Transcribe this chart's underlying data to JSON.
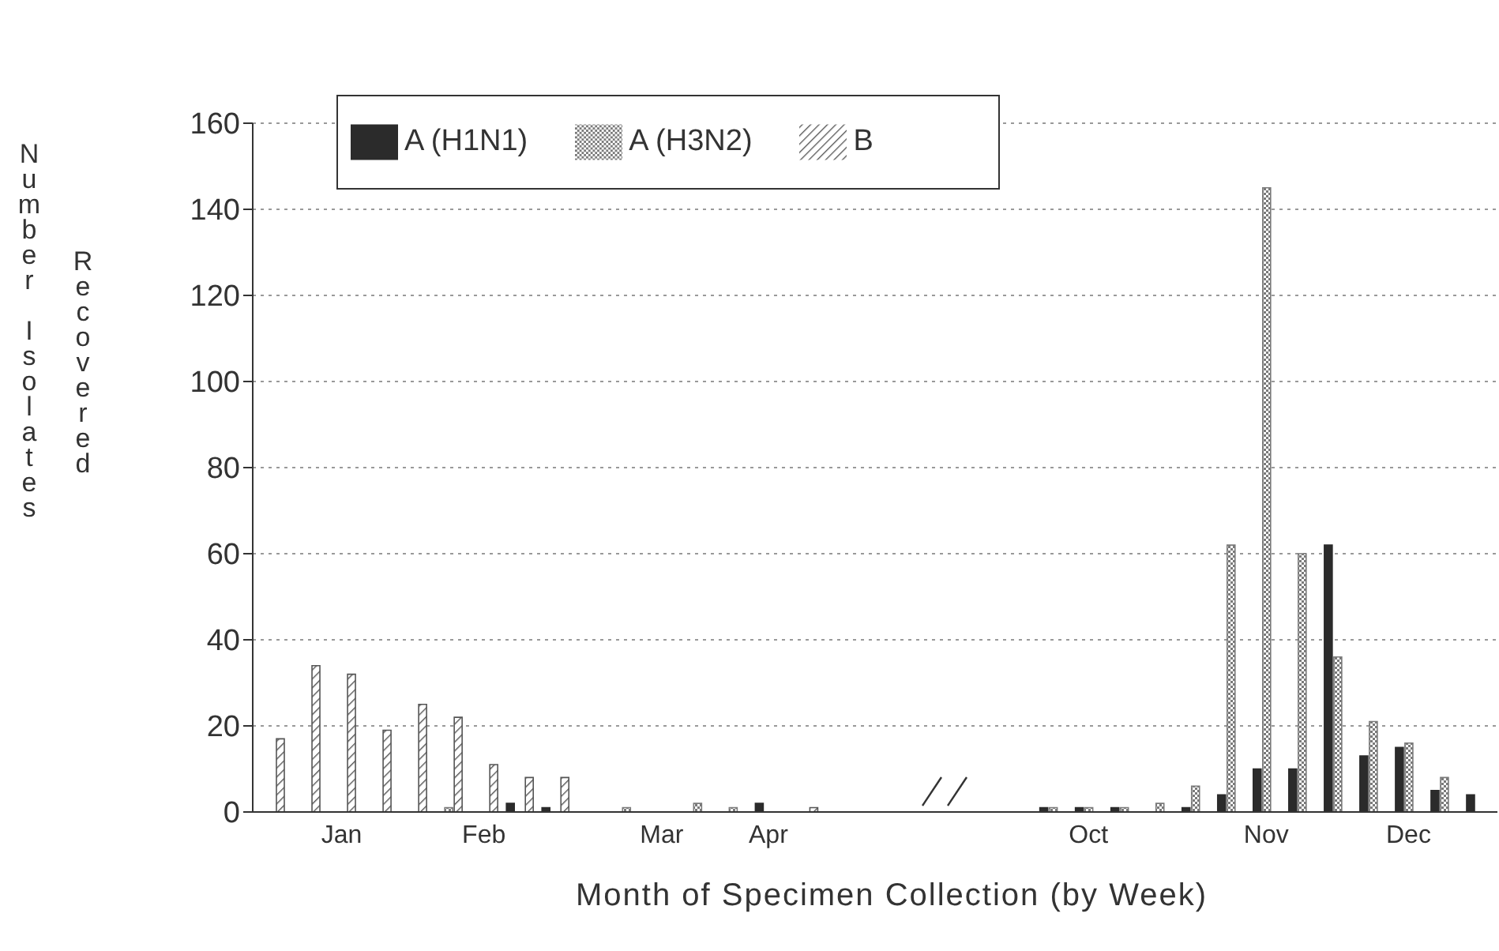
{
  "chart_data": {
    "type": "bar",
    "xlabel": "Month of Specimen Collection (by Week)",
    "ylabel": "Number Isolates Recovered",
    "categories": [
      null,
      null,
      "Jan",
      null,
      null,
      null,
      "Feb",
      null,
      null,
      null,
      null,
      "Mar",
      null,
      null,
      "Apr",
      null,
      null,
      null,
      null,
      null,
      null,
      null,
      null,
      "Oct",
      null,
      null,
      null,
      null,
      "Nov",
      null,
      null,
      null,
      "Dec",
      null,
      null
    ],
    "series": [
      {
        "name": "A (H1N1)",
        "color": "#2b2b2b",
        "values": [
          null,
          null,
          null,
          null,
          null,
          null,
          null,
          2,
          1,
          null,
          null,
          null,
          null,
          null,
          2,
          null,
          null,
          null,
          null,
          null,
          null,
          null,
          1,
          1,
          1,
          null,
          1,
          4,
          10,
          10,
          62,
          13,
          15,
          5,
          4
        ]
      },
      {
        "name": "A (H3N2)",
        "color": "#7a7a7a",
        "values": [
          null,
          null,
          null,
          null,
          null,
          1,
          null,
          null,
          null,
          null,
          1,
          null,
          2,
          1,
          null,
          null,
          null,
          null,
          null,
          null,
          null,
          null,
          1,
          1,
          1,
          2,
          6,
          62,
          145,
          60,
          36,
          21,
          16,
          8,
          null
        ]
      },
      {
        "name": "B",
        "color": "#555555",
        "values": [
          17,
          34,
          32,
          19,
          25,
          22,
          11,
          8,
          8,
          null,
          null,
          null,
          null,
          null,
          null,
          1,
          null,
          null,
          null,
          null,
          null,
          null,
          null,
          null,
          null,
          null,
          null,
          null,
          null,
          null,
          null,
          null,
          null,
          null,
          null
        ]
      }
    ],
    "ylim": [
      0,
      160
    ],
    "yticks": [
      0,
      20,
      40,
      60,
      80,
      100,
      120,
      140,
      160
    ],
    "grid": "y",
    "legend": "top left"
  }
}
